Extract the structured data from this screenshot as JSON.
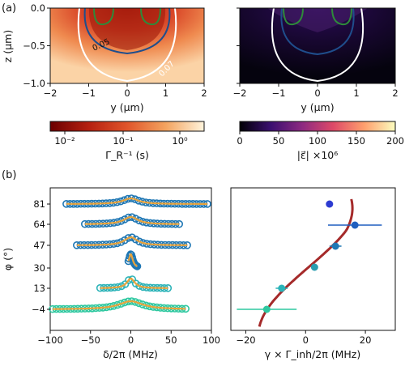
{
  "panel_labels": [
    "(a)",
    "(b)"
  ],
  "chart_data": [
    {
      "type": "heatmap",
      "panel": "(a) left",
      "xlabel": "y (μm)",
      "ylabel": "z (μm)",
      "xlim": [
        -2,
        2
      ],
      "ylim": [
        -1.0,
        0.0
      ],
      "xticks": [
        "−2",
        "−1",
        "0",
        "1",
        "2"
      ],
      "yticks": [
        "0.0",
        "−0.5",
        "−1.0"
      ],
      "contours": [
        {
          "label": "0.05",
          "color": "#1f4e8c"
        },
        {
          "label": "0.07",
          "color": "#ffffff"
        }
      ],
      "colorbar": {
        "label": "Γ_R⁻¹ (s)",
        "scale": "log",
        "ticks": [
          "10⁻²",
          "10⁻¹",
          "10⁰"
        ],
        "colors": [
          "#6b0000",
          "#b52010",
          "#e0552b",
          "#f3a35f",
          "#fff4dc"
        ]
      },
      "overlay_color": "#2e8b3a"
    },
    {
      "type": "heatmap",
      "panel": "(a) right",
      "xlabel": "y (μm)",
      "xlim": [
        -2,
        2
      ],
      "ylim": [
        -1.0,
        0.0
      ],
      "xticks": [
        "−2",
        "−1",
        "0",
        "1",
        "2"
      ],
      "colorbar": {
        "label": "|ε⃗| ×10⁶",
        "scale": "linear",
        "ticks": [
          "0",
          "50",
          "100",
          "150",
          "200"
        ],
        "range": [
          0,
          200
        ],
        "colors": [
          "#000004",
          "#3b0f70",
          "#8c2981",
          "#de4968",
          "#fe9f6d",
          "#fcfdbf"
        ]
      },
      "contour_colors": [
        "#ffffff",
        "#1f4e8c"
      ],
      "overlay_color": "#2e8b3a"
    },
    {
      "type": "scatter",
      "panel": "(b) left",
      "xlabel": "δ/2π (MHz)",
      "ylabel": "φ (°)",
      "xlim": [
        -100,
        100
      ],
      "xticks": [
        "−100",
        "−50",
        "0",
        "50",
        "100"
      ],
      "yticks": [
        "81",
        "64",
        "47",
        "30",
        "13",
        "−4"
      ],
      "series": [
        {
          "angle": 81,
          "amplitude": 7,
          "width": 12,
          "xrange": [
            -80,
            95
          ],
          "color": "#1f77b4"
        },
        {
          "angle": 64,
          "amplitude": 9,
          "width": 11,
          "xrange": [
            -57,
            60
          ],
          "color": "#1f77b4"
        },
        {
          "angle": 47,
          "amplitude": 10,
          "width": 10,
          "xrange": [
            -67,
            70
          ],
          "color": "#1f77b4"
        },
        {
          "angle": 30,
          "amplitude": 17,
          "width": 3,
          "xrange": [
            -3,
            8
          ],
          "color": "#1f77b4"
        },
        {
          "angle": 13,
          "amplitude": 12,
          "width": 6,
          "xrange": [
            -38,
            46
          ],
          "color": "#2bb3b8"
        },
        {
          "angle": -4,
          "amplitude": 10,
          "width": 18,
          "xrange": [
            -97,
            68
          ],
          "color": "#2fc8a0"
        }
      ],
      "fit_color": "#e8a33c"
    },
    {
      "type": "scatter",
      "panel": "(b) right",
      "xlabel": "γ × Γ_inh/2π (MHz)",
      "xlim": [
        -25,
        30
      ],
      "xticks": [
        "−20",
        "0",
        "20"
      ],
      "points": [
        {
          "phi": 81,
          "x": 8,
          "xerr": 1,
          "color": "#2d3bd1"
        },
        {
          "phi": 64,
          "x": 16.5,
          "xerr": 9,
          "color": "#1f5fbf"
        },
        {
          "phi": 47,
          "x": 10,
          "xerr": 2,
          "color": "#1f77b4"
        },
        {
          "phi": 30,
          "x": 3,
          "xerr": 0.5,
          "color": "#2a9db0"
        },
        {
          "phi": 13,
          "x": -8,
          "xerr": 2,
          "color": "#2bb3b8"
        },
        {
          "phi": -4,
          "x": -13,
          "xerr": 10,
          "color": "#2fc8a0"
        }
      ],
      "curve_color": "#a52a2a"
    }
  ]
}
